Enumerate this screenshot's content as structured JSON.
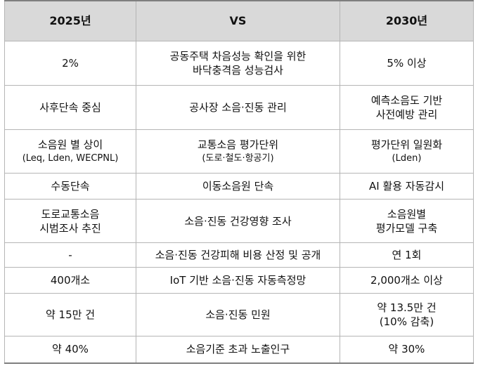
{
  "header": {
    "col1": "2025년",
    "col2": "VS",
    "col3": "2030년"
  },
  "rows": [
    {
      "a": [
        "2%"
      ],
      "b": [
        "공동주택 차음성능 확인을 위한",
        "바닥충격음 성능검사"
      ],
      "c": [
        "5% 이상"
      ]
    },
    {
      "a": [
        "사후단속 중심"
      ],
      "b": [
        "공사장 소음·진동 관리"
      ],
      "c": [
        "예측소음도 기반",
        "사전예방 관리"
      ]
    },
    {
      "a": [
        "소음원 별 상이",
        "(Leq, Lden, WECPNL)"
      ],
      "b": [
        "교통소음 평가단위",
        "(도로·철도·항공기)"
      ],
      "c": [
        "평가단위 일원화",
        "(Lden)"
      ]
    },
    {
      "a": [
        "수동단속"
      ],
      "b": [
        "이동소음원 단속"
      ],
      "c": [
        "AI 활용 자동감시"
      ]
    },
    {
      "a": [
        "도로교통소음",
        "시범조사 추진"
      ],
      "b": [
        "소음·진동 건강영향 조사"
      ],
      "c": [
        "소음원별",
        "평가모델 구축"
      ]
    },
    {
      "a": [
        "-"
      ],
      "b": [
        "소음·진동 건강피해 비용 산정 및 공개"
      ],
      "c": [
        "연 1회"
      ]
    },
    {
      "a": [
        "400개소"
      ],
      "b": [
        "IoT 기반 소음·진동 자동측정망"
      ],
      "c": [
        "2,000개소 이상"
      ]
    },
    {
      "a": [
        "약 15만 건"
      ],
      "b": [
        "소음·진동 민원"
      ],
      "c": [
        "약 13.5만 건",
        "(10% 감축)"
      ]
    },
    {
      "a": [
        "약 40%"
      ],
      "b": [
        "소음기준 초과 노출인구"
      ],
      "c": [
        "약 30%"
      ]
    }
  ]
}
